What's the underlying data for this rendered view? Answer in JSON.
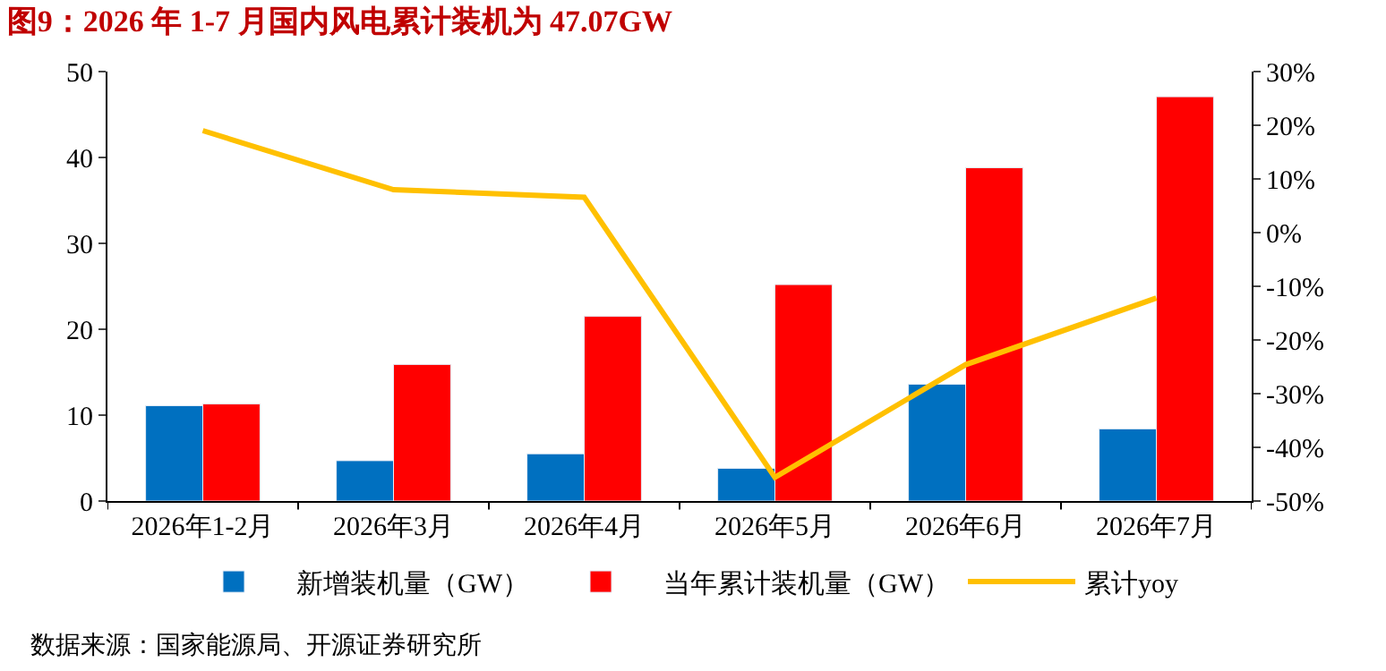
{
  "chart_data": {
    "type": "bar",
    "title": "图9：2026 年 1-7 月国内风电累计装机为 47.07GW",
    "categories": [
      "2026年1-2月",
      "2026年3月",
      "2026年4月",
      "2026年5月",
      "2026年6月",
      "2026年7月"
    ],
    "series": [
      {
        "name": "新增装机量（GW）",
        "color": "#0070c0",
        "values": [
          11.1,
          4.7,
          5.5,
          3.8,
          13.6,
          8.4
        ]
      },
      {
        "name": "当年累计装机量（GW）",
        "color": "#ff0000",
        "values": [
          11.3,
          15.9,
          21.5,
          25.2,
          38.8,
          47.07
        ]
      },
      {
        "name": "累计yoy",
        "type": "line",
        "axis": "y2",
        "color": "#ffc000",
        "values": [
          19,
          8,
          6.6,
          -45.6,
          -24.6,
          -12.2
        ]
      }
    ],
    "ylim": [
      0,
      50
    ],
    "yticks": [
      0,
      10,
      20,
      30,
      40,
      50
    ],
    "y2lim": [
      -50,
      30
    ],
    "y2ticks": [
      {
        "value": -50,
        "label": "-50%"
      },
      {
        "value": -40,
        "label": "-40%"
      },
      {
        "value": -30,
        "label": "-30%"
      },
      {
        "value": -20,
        "label": "-20%"
      },
      {
        "value": -10,
        "label": "-10%"
      },
      {
        "value": 0,
        "label": "0%"
      },
      {
        "value": 10,
        "label": "10%"
      },
      {
        "value": 20,
        "label": "20%"
      },
      {
        "value": 30,
        "label": "30%"
      }
    ],
    "legend": "bottom",
    "annotations": [
      "数据来源：国家能源局、开源证券研究所"
    ]
  }
}
